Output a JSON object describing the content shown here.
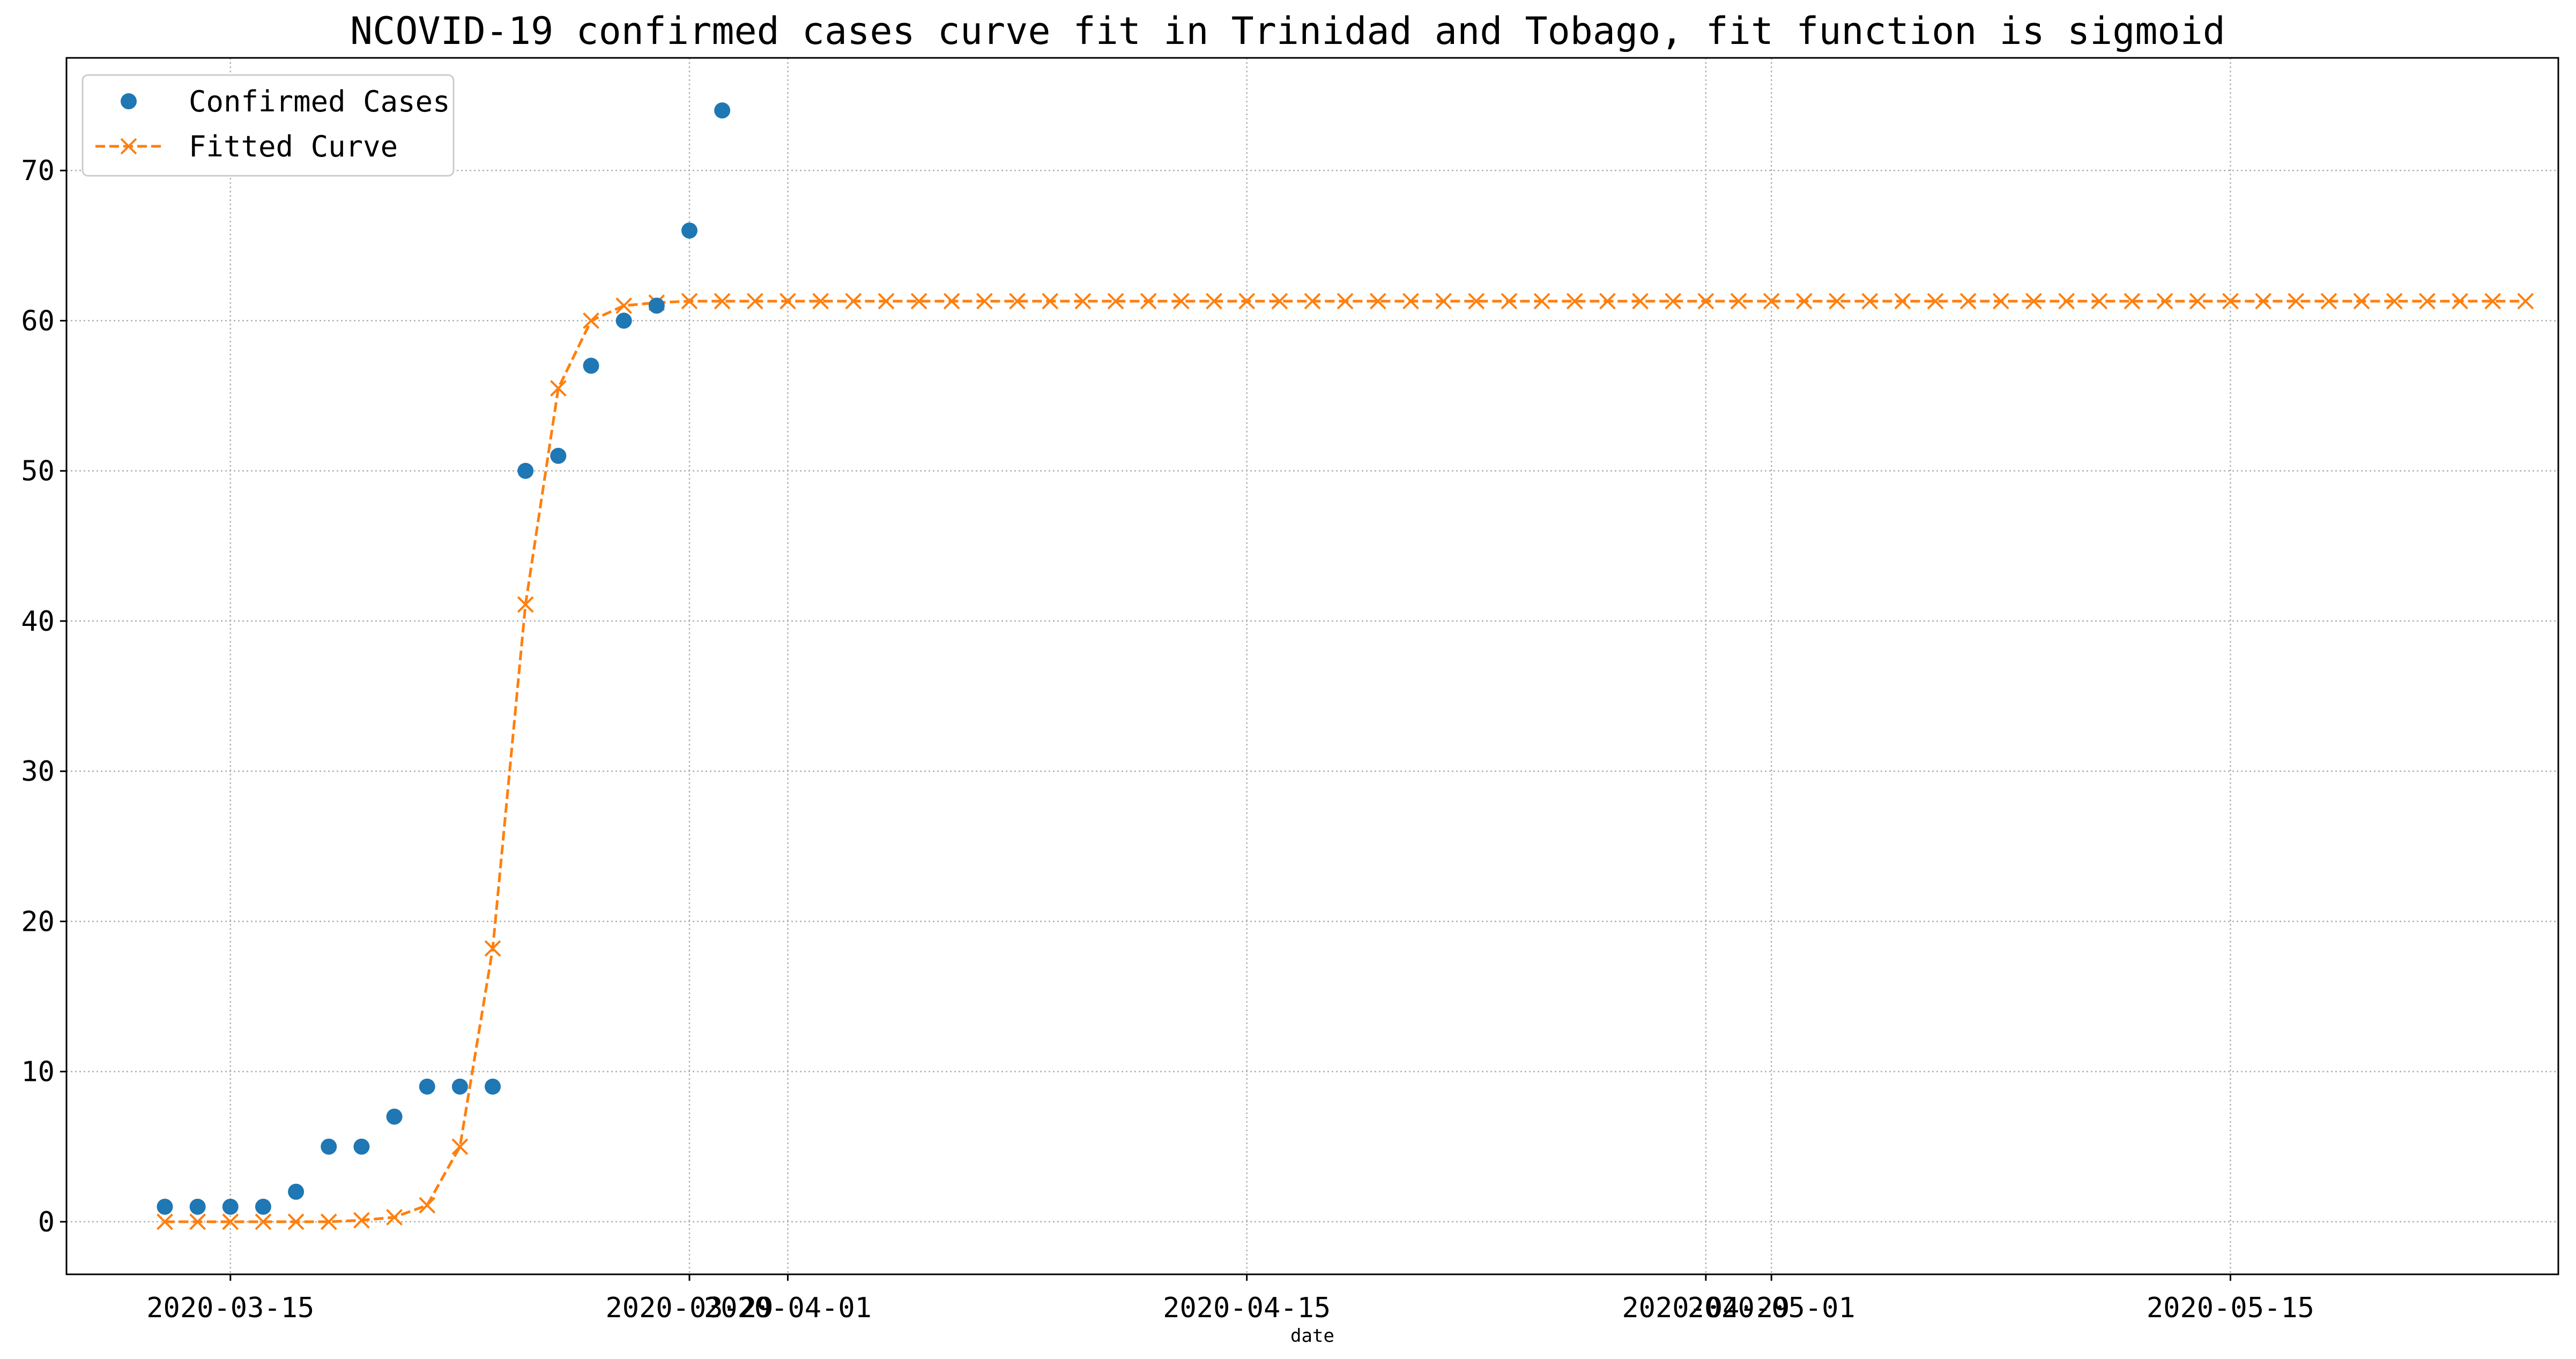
{
  "chart_data": {
    "type": "line",
    "title": "NCOVID-19 confirmed cases curve fit in Trinidad and Tobago, fit function is sigmoid",
    "xlabel": "date",
    "ylabel": "",
    "grid": true,
    "legend_position": "top-left",
    "xlim": [
      "2020-03-10",
      "2020-05-25"
    ],
    "ylim": [
      -3.5,
      77.5
    ],
    "x_ticks": [
      {
        "date": "2020-03-15",
        "label": "2020-03-15"
      },
      {
        "date": "2020-03-29",
        "label": "2020-03-29"
      },
      {
        "date": "2020-04-01",
        "label": "2020-04-01"
      },
      {
        "date": "2020-04-15",
        "label": "2020-04-15"
      },
      {
        "date": "2020-04-29",
        "label": "2020-04-29"
      },
      {
        "date": "2020-05-01",
        "label": "2020-05-01"
      },
      {
        "date": "2020-05-15",
        "label": "2020-05-15"
      }
    ],
    "y_ticks": [
      0,
      10,
      20,
      30,
      40,
      50,
      60,
      70
    ],
    "series": [
      {
        "name": "Confirmed Cases",
        "style": "markers",
        "marker": "circle",
        "color": "#1f77b4",
        "start_date": "2020-03-13",
        "values": [
          1,
          1,
          1,
          1,
          2,
          5,
          5,
          7,
          9,
          9,
          9,
          50,
          51,
          57,
          60,
          61,
          66,
          74
        ]
      },
      {
        "name": "Fitted Curve",
        "style": "dashed-line-x-markers",
        "marker": "x",
        "color": "#ff7f0e",
        "start_date": "2020-03-13",
        "values": [
          0,
          0,
          0,
          0,
          0,
          0,
          0.1,
          0.3,
          1.1,
          5.0,
          18.2,
          41.1,
          55.5,
          60.0,
          61.0,
          61.2,
          61.3,
          61.3,
          61.3,
          61.3,
          61.3,
          61.3,
          61.3,
          61.3,
          61.3,
          61.3,
          61.3,
          61.3,
          61.3,
          61.3,
          61.3,
          61.3,
          61.3,
          61.3,
          61.3,
          61.3,
          61.3,
          61.3,
          61.3,
          61.3,
          61.3,
          61.3,
          61.3,
          61.3,
          61.3,
          61.3,
          61.3,
          61.3,
          61.3,
          61.3,
          61.3,
          61.3,
          61.3,
          61.3,
          61.3,
          61.3,
          61.3,
          61.3,
          61.3,
          61.3,
          61.3,
          61.3,
          61.3,
          61.3,
          61.3,
          61.3,
          61.3,
          61.3,
          61.3,
          61.3,
          61.3,
          61.3,
          61.3
        ]
      }
    ]
  }
}
